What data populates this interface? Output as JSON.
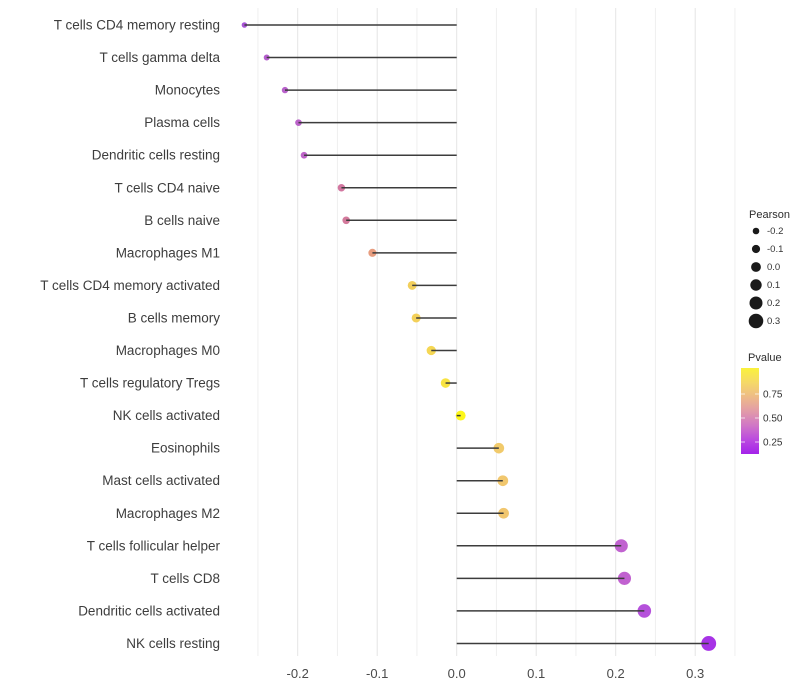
{
  "chart_data": {
    "type": "scatter",
    "variant": "lollipop",
    "orientation": "horizontal",
    "title": "",
    "xlabel": "",
    "ylabel": "",
    "categories": [
      "T cells CD4 memory resting",
      "T cells gamma delta",
      "Monocytes",
      "Plasma cells",
      "Dendritic cells resting",
      "T cells CD4 naive",
      "B cells naive",
      "Macrophages M1",
      "T cells CD4 memory activated",
      "B cells memory",
      "Macrophages M0",
      "T cells regulatory  Tregs",
      "NK cells activated",
      "Eosinophils",
      "Mast cells activated",
      "Macrophages M2",
      "T cells follicular helper",
      "T cells CD8",
      "Dendritic cells activated",
      "NK cells resting"
    ],
    "series": [
      {
        "name": "Pearson",
        "values": [
          -0.267,
          -0.239,
          -0.216,
          -0.199,
          -0.192,
          -0.145,
          -0.139,
          -0.106,
          -0.056,
          -0.051,
          -0.032,
          -0.014,
          0.005,
          0.053,
          0.058,
          0.059,
          0.207,
          0.211,
          0.236,
          0.317
        ]
      }
    ],
    "point_colors": [
      "#A24BD3",
      "#B054C9",
      "#B458C8",
      "#B75AC6",
      "#B95CC5",
      "#D0709B",
      "#D17397",
      "#E79878",
      "#F1CC52",
      "#F2CE50",
      "#F4D54B",
      "#F8E237",
      "#FDF70E",
      "#F0C763",
      "#F0C466",
      "#F0C366",
      "#BE5BCD",
      "#BE59CE",
      "#B148D9",
      "#A228E5"
    ],
    "xlim": [
      -0.275,
      0.355
    ],
    "x_ticks": [
      -0.2,
      -0.1,
      0.0,
      0.1,
      0.2,
      0.3
    ],
    "x_tick_labels": [
      "-0.2",
      "-0.1",
      "0.0",
      "0.1",
      "0.2",
      "0.3"
    ],
    "grid": {
      "vertical": true,
      "horizontal": false,
      "minor_step": 0.05
    },
    "legend_position": "right",
    "legends": {
      "size": {
        "title": "Pearson",
        "labels": [
          "-0.2",
          "-0.1",
          "0.0",
          "0.1",
          "0.2",
          "0.3"
        ],
        "values": [
          -0.2,
          -0.1,
          0.0,
          0.1,
          0.2,
          0.3
        ],
        "dot_color": "#1A1A1A"
      },
      "color": {
        "title": "Pvalue",
        "labels": [
          "0.75",
          "0.50",
          "0.25"
        ],
        "values": [
          0.75,
          0.5,
          0.25
        ],
        "gradient_top_to_bottom": [
          "#FAF23B",
          "#F5D967",
          "#EEBB87",
          "#E29BA8",
          "#D077C6",
          "#BB4ADF",
          "#A422EA"
        ]
      }
    }
  },
  "style": {
    "background": "#FFFFFF",
    "grid_major": "#E4E4E4",
    "grid_minor": "#EFEFEF",
    "stem": "#3C3C3C",
    "label_text": "#3D3D3D",
    "tick_text": "#4A4A4A",
    "legend_title_text": "#2E2E2E",
    "legend_text": "#333333"
  }
}
